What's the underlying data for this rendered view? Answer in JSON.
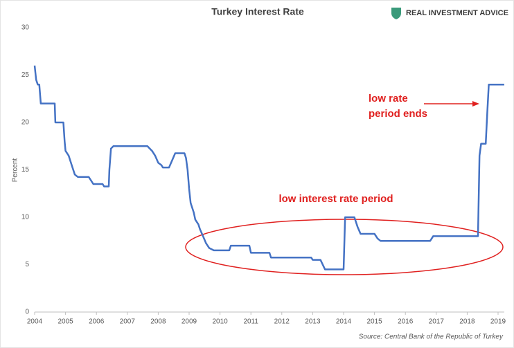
{
  "chart_data": {
    "type": "line",
    "title": "Turkey Interest Rate",
    "brand": "REAL INVESTMENT ADVICE",
    "ylabel": "Percent",
    "source": "Source: Central Bank of the Republic of Turkey",
    "annotations": [
      {
        "lines": [
          "low rate",
          "period ends"
        ]
      },
      {
        "lines": [
          "low interest rate period"
        ]
      }
    ],
    "color": "#4472c4",
    "annotation_color": "#e0201f",
    "xlim": [
      2004,
      2019.2
    ],
    "ylim": [
      0,
      30
    ],
    "xticks": [
      2004,
      2005,
      2006,
      2007,
      2008,
      2009,
      2010,
      2011,
      2012,
      2013,
      2014,
      2015,
      2016,
      2017,
      2018,
      2019
    ],
    "yticks": [
      0,
      5,
      10,
      15,
      20,
      25,
      30
    ],
    "grid": false,
    "x": [
      2004.0,
      2004.05,
      2004.1,
      2004.15,
      2004.2,
      2004.65,
      2004.67,
      2004.93,
      2004.97,
      2005.0,
      2005.1,
      2005.2,
      2005.3,
      2005.4,
      2005.75,
      2005.8,
      2005.9,
      2006.2,
      2006.25,
      2006.4,
      2006.42,
      2006.47,
      2006.55,
      2007.65,
      2007.8,
      2007.9,
      2008.0,
      2008.1,
      2008.15,
      2008.35,
      2008.45,
      2008.55,
      2008.85,
      2008.9,
      2008.95,
      2009.0,
      2009.05,
      2009.15,
      2009.2,
      2009.3,
      2009.35,
      2009.45,
      2009.55,
      2009.65,
      2009.8,
      2010.3,
      2010.35,
      2010.95,
      2011.0,
      2011.6,
      2011.65,
      2012.95,
      2013.0,
      2013.25,
      2013.4,
      2014.0,
      2014.05,
      2014.35,
      2014.45,
      2014.55,
      2015.0,
      2015.1,
      2015.2,
      2016.8,
      2016.9,
      2018.35,
      2018.4,
      2018.45,
      2018.6,
      2018.65,
      2018.7,
      2019.2
    ],
    "values": [
      26,
      24.5,
      24,
      24,
      22,
      22,
      20,
      20,
      18,
      17,
      16.5,
      15.5,
      14.5,
      14.25,
      14.25,
      14,
      13.5,
      13.5,
      13.25,
      13.25,
      15,
      17.25,
      17.5,
      17.5,
      17,
      16.5,
      15.75,
      15.5,
      15.25,
      15.25,
      16,
      16.75,
      16.75,
      16.25,
      15,
      13,
      11.5,
      10.5,
      9.75,
      9.25,
      8.75,
      8,
      7.25,
      6.75,
      6.5,
      6.5,
      7,
      7,
      6.25,
      6.25,
      5.75,
      5.75,
      5.5,
      5.5,
      4.5,
      4.5,
      10,
      10,
      9,
      8.25,
      8.25,
      7.75,
      7.5,
      7.5,
      8,
      8,
      16.5,
      17.75,
      17.75,
      21,
      24,
      24
    ]
  }
}
